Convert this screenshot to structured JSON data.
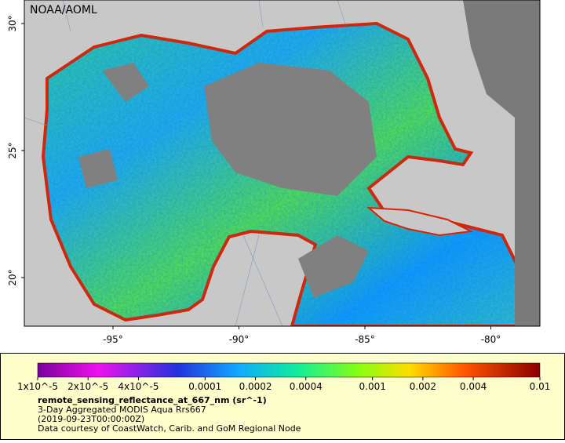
{
  "map": {
    "credit": "NOAA/AOML",
    "lat_ticks": [
      "30°",
      "25°",
      "20°"
    ],
    "lon_ticks": [
      "-95°",
      "-90°",
      "-85°",
      "-80°"
    ]
  },
  "colorbar": {
    "labels": [
      "1x10^-5",
      "2x10^-5",
      "4x10^-5",
      "0.0001",
      "0.0002",
      "0.0004",
      "0.001",
      "0.002",
      "0.004",
      "0.01"
    ]
  },
  "caption": {
    "title": "remote_sensing_reflectance_at_667_nm (sr^-1)",
    "lines": [
      "3-Day Aggregated MODIS Aqua Rrs667",
      "(2019-09-23T00:00:00Z)",
      "Data courtesy of CoastWatch, Carib. and GoM Regional Node"
    ]
  }
}
